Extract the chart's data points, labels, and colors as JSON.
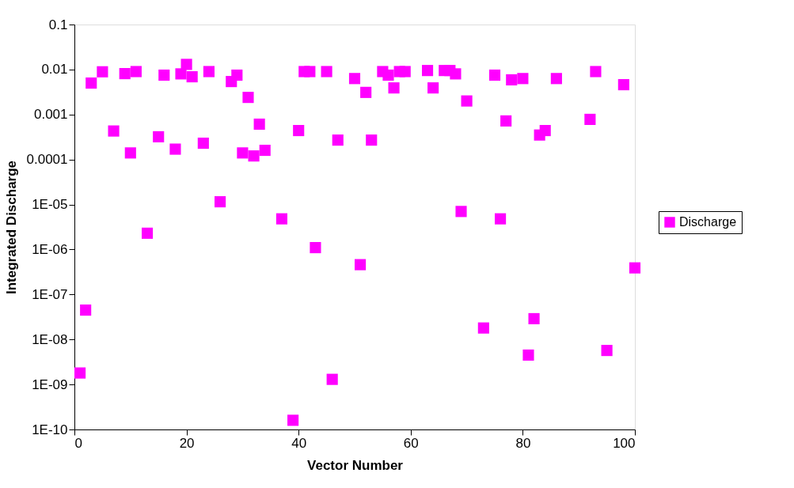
{
  "chart_data": {
    "type": "scatter",
    "xlabel": "Vector Number",
    "ylabel": "Integrated Discharge",
    "x": [
      1,
      2,
      3,
      5,
      7,
      9,
      10,
      11,
      13,
      15,
      16,
      18,
      19,
      20,
      21,
      23,
      24,
      26,
      28,
      29,
      30,
      31,
      32,
      33,
      34,
      37,
      39,
      40,
      41,
      42,
      43,
      45,
      46,
      47,
      50,
      51,
      52,
      53,
      55,
      56,
      57,
      58,
      59,
      63,
      64,
      66,
      67,
      68,
      69,
      70,
      73,
      74,
      75,
      76,
      77,
      78,
      80,
      81,
      82,
      83,
      84,
      86,
      92,
      93,
      95,
      98,
      100
    ],
    "series": [
      {
        "name": "Discharge",
        "color": "#ff00ff",
        "values": [
          1.8e-09,
          4.5e-08,
          0.005,
          0.0089,
          0.00043,
          0.0081,
          0.00014,
          0.009,
          2.3e-06,
          0.00032,
          0.0075,
          0.00017,
          0.008,
          0.013,
          0.0069,
          0.00023,
          0.009,
          1.15e-05,
          0.0054,
          0.0075,
          0.00014,
          0.0024,
          0.00012,
          0.00061,
          0.00016,
          4.8e-06,
          1.6e-10,
          0.00044,
          0.009,
          0.009,
          1.1e-06,
          0.009,
          1.3e-09,
          0.00027,
          0.0063,
          4.6e-07,
          0.0031,
          0.00027,
          0.009,
          0.0075,
          0.0039,
          0.009,
          0.009,
          0.0095,
          0.0039,
          0.0095,
          0.0095,
          0.008,
          7e-06,
          0.002,
          1.8e-08,
          null,
          0.0075,
          4.8e-06,
          0.00072,
          0.0059,
          0.0063,
          4.5e-09,
          2.9e-08,
          0.00035,
          0.00044,
          0.0063,
          0.00078,
          0.009,
          5.7e-09,
          0.0046,
          3.9e-07
        ]
      }
    ],
    "xlim": [
      0,
      100
    ],
    "xticks": [
      0,
      20,
      40,
      60,
      80,
      100
    ],
    "ylim": [
      1e-10,
      0.1
    ],
    "yticks": [
      0.1,
      0.01,
      0.001,
      0.0001,
      {
        "value": 1e-05,
        "label": "1E-05"
      },
      {
        "value": 1e-06,
        "label": "1E-06"
      },
      {
        "value": 1e-07,
        "label": "1E-07"
      },
      {
        "value": 1e-08,
        "label": "1E-08"
      },
      {
        "value": 1e-09,
        "label": "1E-09"
      },
      {
        "value": 1e-10,
        "label": "1E-10"
      }
    ],
    "log": "y",
    "grid": false,
    "legend": "right",
    "marker": "square"
  }
}
